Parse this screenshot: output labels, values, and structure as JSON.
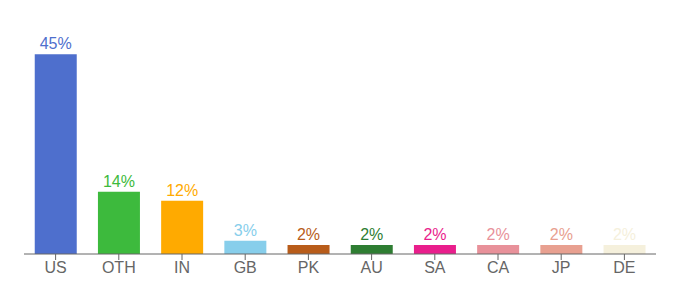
{
  "chart_data": {
    "type": "bar",
    "categories": [
      "US",
      "OTH",
      "IN",
      "GB",
      "PK",
      "AU",
      "SA",
      "CA",
      "JP",
      "DE"
    ],
    "values": [
      45,
      14,
      12,
      3,
      2,
      2,
      2,
      2,
      2,
      2
    ],
    "value_labels": [
      "45%",
      "14%",
      "12%",
      "3%",
      "2%",
      "2%",
      "2%",
      "2%",
      "2%",
      "2%"
    ],
    "colors": [
      "#4e6fcd",
      "#3dba3d",
      "#ffaa00",
      "#87ceeb",
      "#b85c1a",
      "#2e7d32",
      "#e91e8c",
      "#e8919a",
      "#e8a090",
      "#f5f0dc"
    ],
    "ylim": [
      0,
      50
    ],
    "data_labels": true,
    "tick_labels": "x",
    "grid": false
  }
}
